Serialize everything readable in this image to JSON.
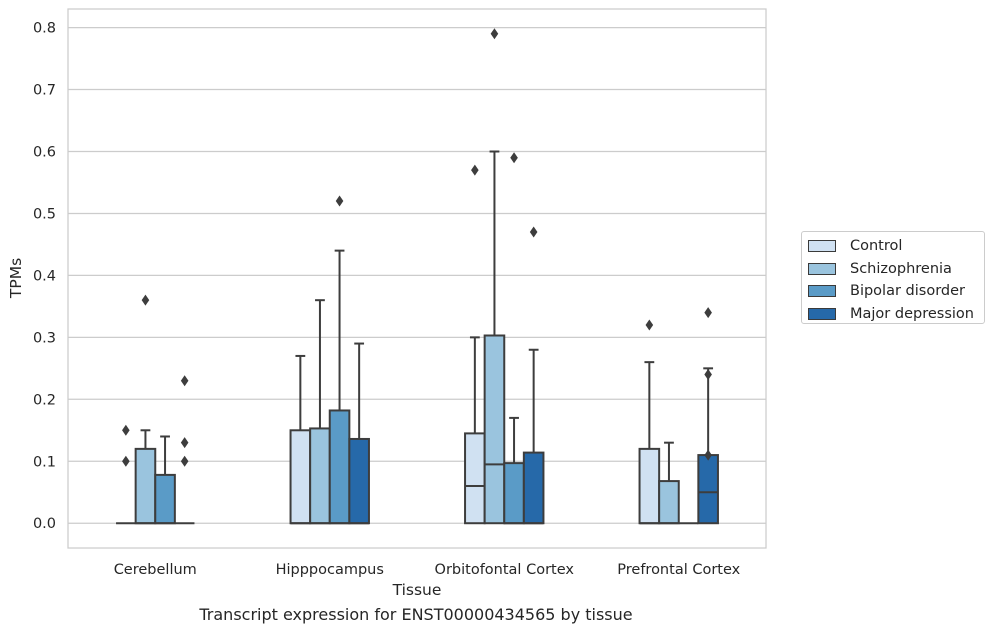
{
  "chart_data": {
    "type": "box",
    "xlabel": "Tissue",
    "ylabel": "TPMs",
    "ylim": [
      -0.04,
      0.83
    ],
    "yticks": [
      0.0,
      0.1,
      0.2,
      0.3,
      0.4,
      0.5,
      0.6,
      0.7,
      0.8
    ],
    "ytick_labels": [
      "0.0",
      "0.1",
      "0.2",
      "0.3",
      "0.4",
      "0.5",
      "0.6",
      "0.7",
      "0.8"
    ],
    "grid": "horizontal",
    "legend_position": "right",
    "categories": [
      "Cerebellum",
      "Hipppocampus",
      "Orbitofontal Cortex",
      "Prefrontal Cortex"
    ],
    "series": [
      {
        "name": "Control",
        "color": "#d0e1f2",
        "boxes": [
          {
            "q1": 0.0,
            "median": 0.0,
            "q3": 0.0,
            "whisker_low": 0.0,
            "whisker_high": 0.0,
            "outliers": [
              0.1,
              0.15
            ]
          },
          {
            "q1": 0.0,
            "median": 0.0,
            "q3": 0.15,
            "whisker_low": 0.0,
            "whisker_high": 0.27,
            "outliers": []
          },
          {
            "q1": 0.0,
            "median": 0.06,
            "q3": 0.145,
            "whisker_low": 0.0,
            "whisker_high": 0.3,
            "outliers": [
              0.57
            ]
          },
          {
            "q1": 0.0,
            "median": 0.0,
            "q3": 0.12,
            "whisker_low": 0.0,
            "whisker_high": 0.26,
            "outliers": [
              0.32
            ]
          }
        ]
      },
      {
        "name": "Schizophrenia",
        "color": "#9ac4de",
        "boxes": [
          {
            "q1": 0.0,
            "median": 0.0,
            "q3": 0.12,
            "whisker_low": 0.0,
            "whisker_high": 0.15,
            "outliers": [
              0.36
            ]
          },
          {
            "q1": 0.0,
            "median": 0.0,
            "q3": 0.153,
            "whisker_low": 0.0,
            "whisker_high": 0.36,
            "outliers": []
          },
          {
            "q1": 0.0,
            "median": 0.095,
            "q3": 0.303,
            "whisker_low": 0.0,
            "whisker_high": 0.6,
            "outliers": [
              0.79
            ]
          },
          {
            "q1": 0.0,
            "median": 0.0,
            "q3": 0.068,
            "whisker_low": 0.0,
            "whisker_high": 0.13,
            "outliers": []
          }
        ]
      },
      {
        "name": "Bipolar disorder",
        "color": "#5a9bc7",
        "boxes": [
          {
            "q1": 0.0,
            "median": 0.0,
            "q3": 0.078,
            "whisker_low": 0.0,
            "whisker_high": 0.14,
            "outliers": []
          },
          {
            "q1": 0.0,
            "median": 0.0,
            "q3": 0.182,
            "whisker_low": 0.0,
            "whisker_high": 0.44,
            "outliers": [
              0.52
            ]
          },
          {
            "q1": 0.0,
            "median": 0.0,
            "q3": 0.097,
            "whisker_low": 0.0,
            "whisker_high": 0.17,
            "outliers": [
              0.59
            ]
          },
          {
            "q1": 0.0,
            "median": 0.0,
            "q3": 0.0,
            "whisker_low": 0.0,
            "whisker_high": 0.0,
            "outliers": []
          }
        ]
      },
      {
        "name": "Major depression",
        "color": "#2669a9",
        "boxes": [
          {
            "q1": 0.0,
            "median": 0.0,
            "q3": 0.0,
            "whisker_low": 0.0,
            "whisker_high": 0.0,
            "outliers": [
              0.1,
              0.13,
              0.23
            ]
          },
          {
            "q1": 0.0,
            "median": 0.0,
            "q3": 0.136,
            "whisker_low": 0.0,
            "whisker_high": 0.29,
            "outliers": []
          },
          {
            "q1": 0.0,
            "median": 0.0,
            "q3": 0.114,
            "whisker_low": 0.0,
            "whisker_high": 0.28,
            "outliers": [
              0.47
            ]
          },
          {
            "q1": 0.0,
            "median": 0.05,
            "q3": 0.11,
            "whisker_low": 0.0,
            "whisker_high": 0.25,
            "outliers": [
              0.11,
              0.24,
              0.34
            ]
          }
        ]
      }
    ]
  },
  "caption": "Transcript expression for ENST00000434565 by tissue"
}
